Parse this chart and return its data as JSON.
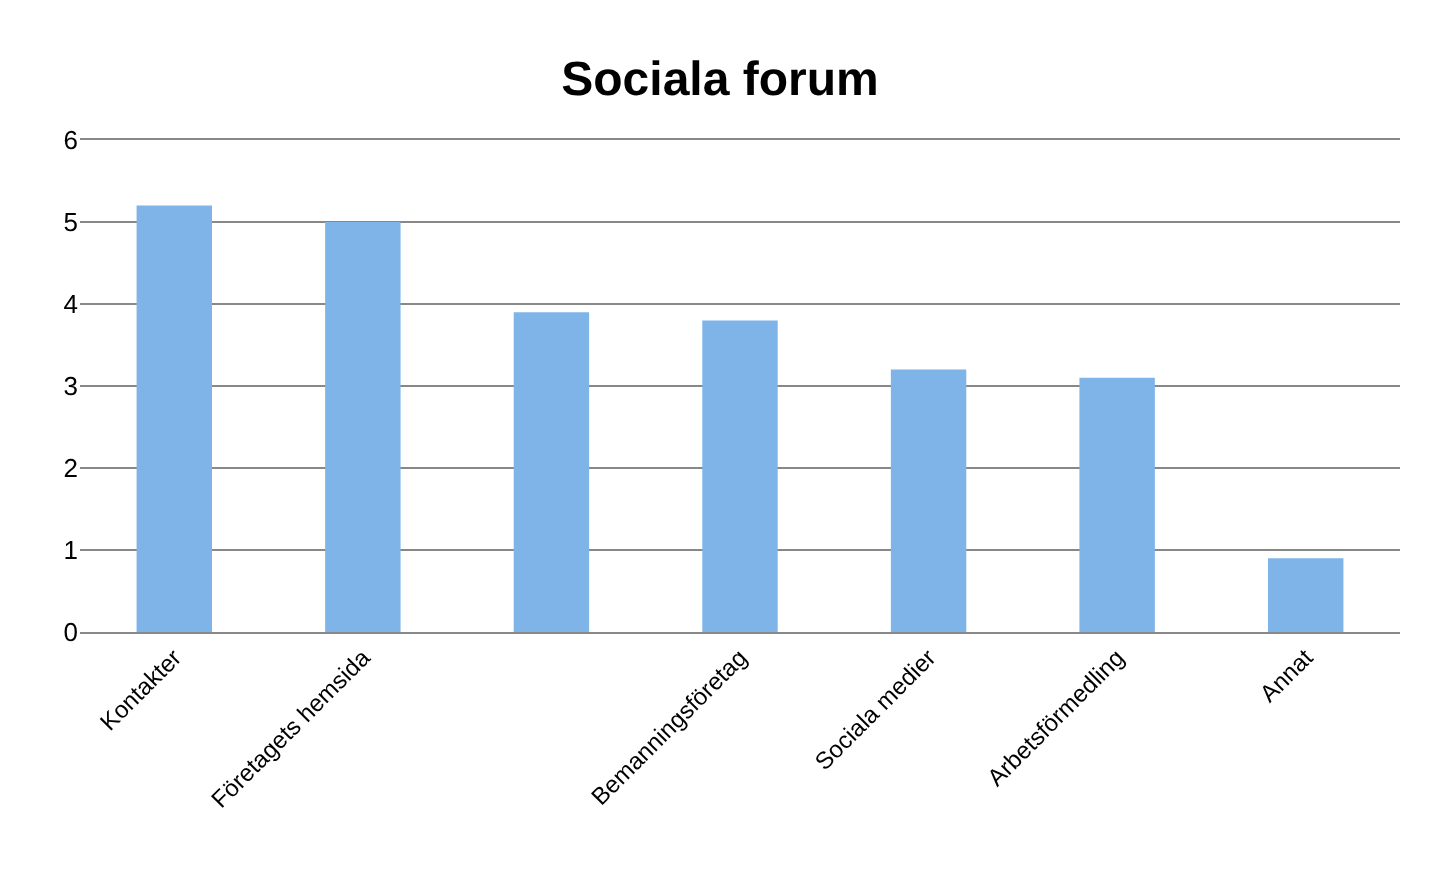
{
  "chart_data": {
    "type": "bar",
    "title": "Sociala forum",
    "categories": [
      "Kontakter",
      "Företagets hemsida",
      null,
      "Bemanningsföretag",
      "Sociala medier",
      "Arbetsförmedling",
      "Annat"
    ],
    "values": [
      5.2,
      5.0,
      3.9,
      3.8,
      3.2,
      3.1,
      0.9
    ],
    "color": "#7fb4e8",
    "ylim": [
      0,
      6
    ],
    "yticks": [
      0,
      1,
      2,
      3,
      4,
      5,
      6
    ],
    "grid": "y"
  }
}
